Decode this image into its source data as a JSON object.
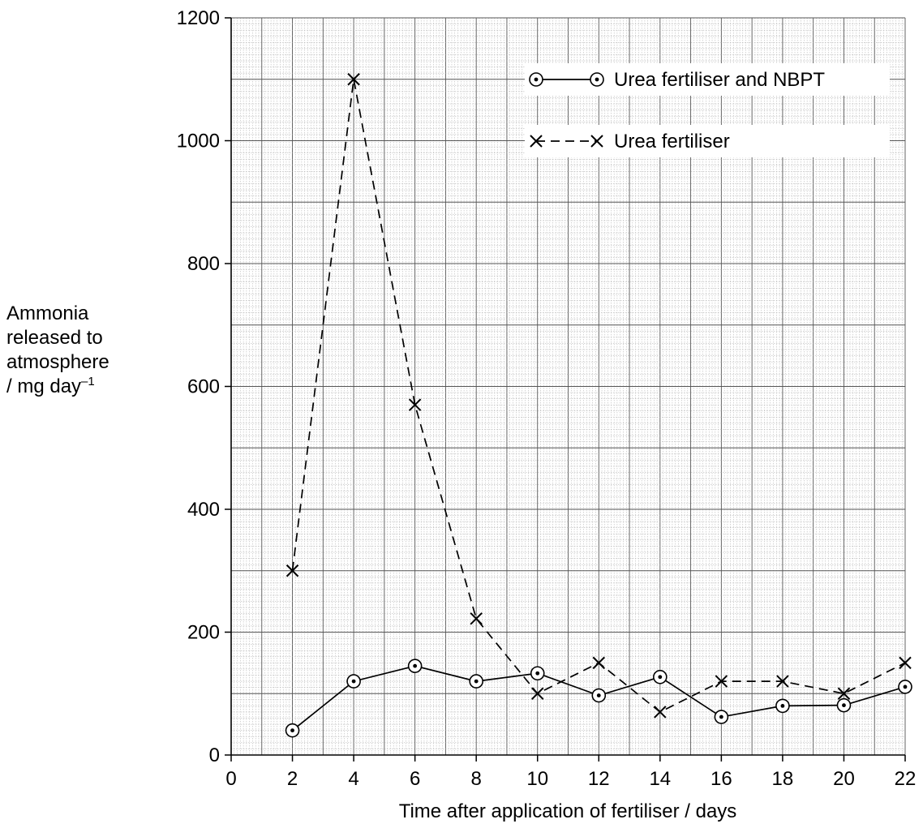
{
  "chart_data": {
    "type": "line",
    "title": "",
    "ylabel_lines": [
      "Ammonia",
      "released to",
      "atmosphere"
    ],
    "ylabel_unit": "/ mg day",
    "ylabel_unit_sup": "–1",
    "xlabel": "Time after application of fertiliser / days",
    "xlim": [
      0,
      22
    ],
    "ylim": [
      0,
      1200
    ],
    "x_ticks": [
      0,
      2,
      4,
      6,
      8,
      10,
      12,
      14,
      16,
      18,
      20,
      22
    ],
    "y_ticks": [
      0,
      200,
      400,
      600,
      800,
      1000,
      1200
    ],
    "grid": true,
    "legend_position": "top-right",
    "series": [
      {
        "name": "Urea fertiliser and NBPT",
        "marker": "circle-dot",
        "line": "solid",
        "x": [
          2,
          4,
          6,
          8,
          10,
          12,
          14,
          16,
          18,
          20,
          22
        ],
        "y": [
          40,
          120,
          145,
          120,
          133,
          97,
          127,
          62,
          80,
          81,
          111
        ]
      },
      {
        "name": "Urea fertiliser",
        "marker": "cross",
        "line": "dashed",
        "x": [
          2,
          4,
          6,
          8,
          10,
          12,
          14,
          16,
          18,
          20,
          22
        ],
        "y": [
          300,
          1100,
          570,
          222,
          100,
          150,
          70,
          120,
          120,
          100,
          150
        ]
      }
    ]
  }
}
